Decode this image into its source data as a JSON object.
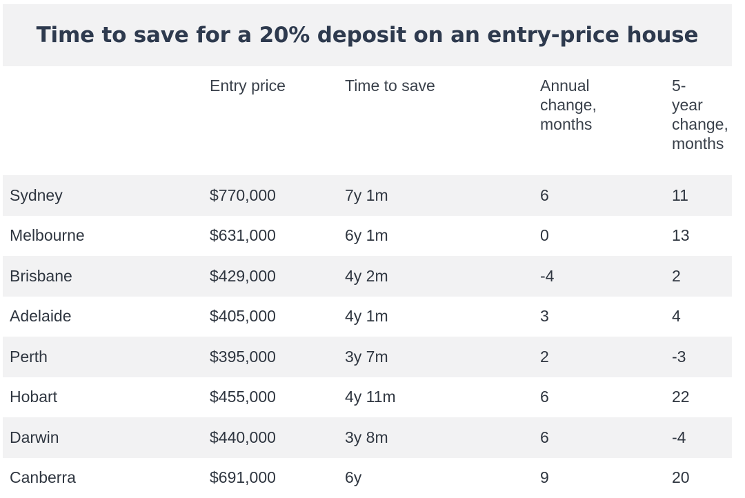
{
  "chart_data": {
    "type": "table",
    "title": "Time to save for a 20% deposit on an entry-price house",
    "columns": [
      "",
      "Entry price",
      "Time to save",
      "Annual change, months",
      "5-year change, months"
    ],
    "header_lines": {
      "annual": [
        "Annual",
        "change,",
        "months"
      ],
      "five_year": [
        "5-",
        "year",
        "change,",
        "months"
      ]
    },
    "rows": [
      {
        "city": "Sydney",
        "entry_price": "$770,000",
        "time_to_save": "7y 1m",
        "annual_change": "6",
        "five_year_change": "11"
      },
      {
        "city": "Melbourne",
        "entry_price": "$631,000",
        "time_to_save": "6y 1m",
        "annual_change": "0",
        "five_year_change": "13"
      },
      {
        "city": "Brisbane",
        "entry_price": "$429,000",
        "time_to_save": "4y 2m",
        "annual_change": "-4",
        "five_year_change": "2"
      },
      {
        "city": "Adelaide",
        "entry_price": "$405,000",
        "time_to_save": "4y 1m",
        "annual_change": "3",
        "five_year_change": "4"
      },
      {
        "city": "Perth",
        "entry_price": "$395,000",
        "time_to_save": "3y 7m",
        "annual_change": "2",
        "five_year_change": "-3"
      },
      {
        "city": "Hobart",
        "entry_price": "$455,000",
        "time_to_save": "4y 11m",
        "annual_change": "6",
        "five_year_change": "22"
      },
      {
        "city": "Darwin",
        "entry_price": "$440,000",
        "time_to_save": "3y 8m",
        "annual_change": "6",
        "five_year_change": "-4"
      },
      {
        "city": "Canberra",
        "entry_price": "$691,000",
        "time_to_save": "6y",
        "annual_change": "9",
        "five_year_change": "20"
      }
    ]
  }
}
